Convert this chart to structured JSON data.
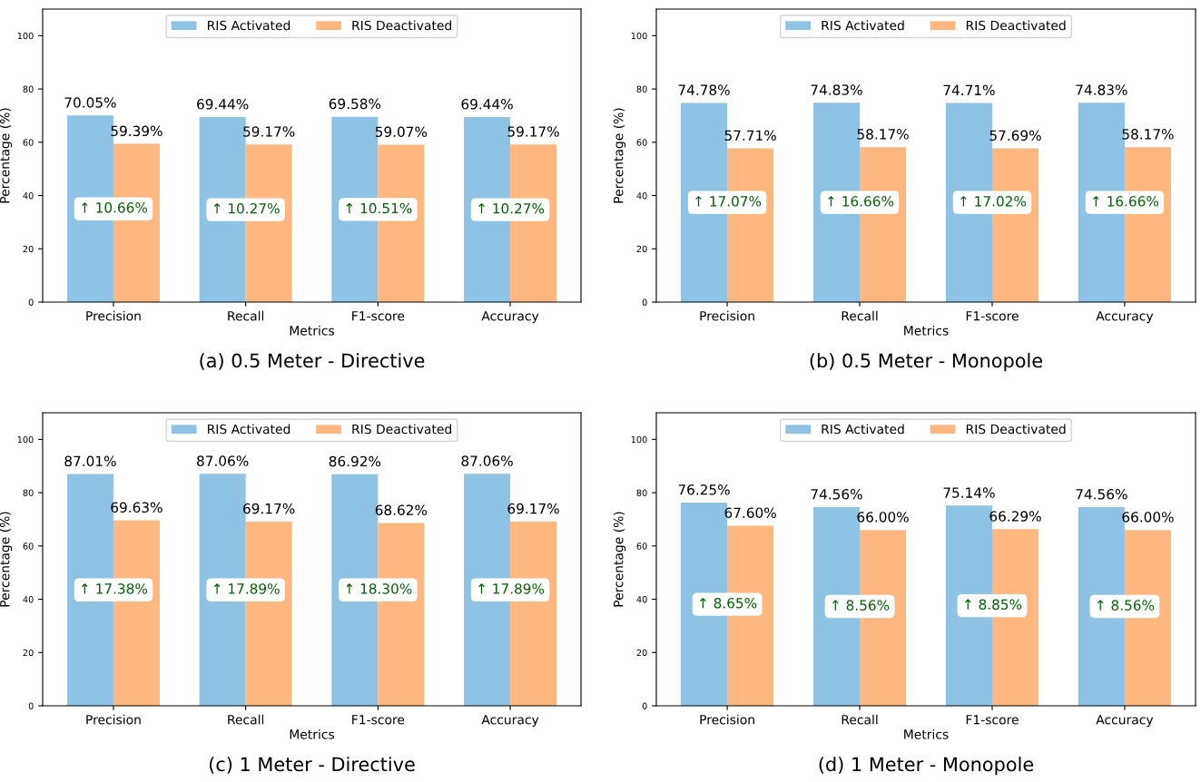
{
  "chart_data": [
    {
      "type": "bar",
      "title": "(a) 0.5 Meter - Directive",
      "xlabel": "Metrics",
      "ylabel": "Percentage (%)",
      "categories": [
        "Precision",
        "Recall",
        "F1-score",
        "Accuracy"
      ],
      "ylim": [
        0,
        110
      ],
      "yticks": [
        0,
        20,
        40,
        60,
        80,
        100
      ],
      "legend": "top",
      "series": [
        {
          "name": "RIS Activated",
          "color": "#8ec3e6",
          "values": [
            70.05,
            69.44,
            69.58,
            69.44
          ],
          "value_labels": [
            "70.05%",
            "69.44%",
            "69.58%",
            "69.44%"
          ]
        },
        {
          "name": "RIS Deactivated",
          "color": "#feb87f",
          "values": [
            59.39,
            59.17,
            59.07,
            59.17
          ],
          "value_labels": [
            "59.39%",
            "59.17%",
            "59.07%",
            "59.17%"
          ]
        }
      ],
      "annotations": [
        {
          "text": "↑ 10.66%",
          "x": "Precision",
          "y": 35
        },
        {
          "text": "↑ 10.27%",
          "x": "Recall",
          "y": 34.7
        },
        {
          "text": "↑ 10.51%",
          "x": "F1-score",
          "y": 34.8
        },
        {
          "text": "↑ 10.27%",
          "x": "Accuracy",
          "y": 34.7
        }
      ]
    },
    {
      "type": "bar",
      "title": "(b) 0.5 Meter - Monopole",
      "xlabel": "Metrics",
      "ylabel": "Percentage (%)",
      "categories": [
        "Precision",
        "Recall",
        "F1-score",
        "Accuracy"
      ],
      "ylim": [
        0,
        110
      ],
      "yticks": [
        0,
        20,
        40,
        60,
        80,
        100
      ],
      "legend": "top",
      "series": [
        {
          "name": "RIS Activated",
          "color": "#8ec3e6",
          "values": [
            74.78,
            74.83,
            74.71,
            74.83
          ],
          "value_labels": [
            "74.78%",
            "74.83%",
            "74.71%",
            "74.83%"
          ]
        },
        {
          "name": "RIS Deactivated",
          "color": "#feb87f",
          "values": [
            57.71,
            58.17,
            57.69,
            58.17
          ],
          "value_labels": [
            "57.71%",
            "58.17%",
            "57.69%",
            "58.17%"
          ]
        }
      ],
      "annotations": [
        {
          "text": "↑ 17.07%",
          "x": "Precision",
          "y": 37.4
        },
        {
          "text": "↑ 16.66%",
          "x": "Recall",
          "y": 37.4
        },
        {
          "text": "↑ 17.02%",
          "x": "F1-score",
          "y": 37.4
        },
        {
          "text": "↑ 16.66%",
          "x": "Accuracy",
          "y": 37.4
        }
      ]
    },
    {
      "type": "bar",
      "title": "(c) 1 Meter - Directive",
      "xlabel": "Metrics",
      "ylabel": "Percentage (%)",
      "categories": [
        "Precision",
        "Recall",
        "F1-score",
        "Accuracy"
      ],
      "ylim": [
        0,
        110
      ],
      "yticks": [
        0,
        20,
        40,
        60,
        80,
        100
      ],
      "legend": "top",
      "series": [
        {
          "name": "RIS Activated",
          "color": "#8ec3e6",
          "values": [
            87.01,
            87.06,
            86.92,
            87.06
          ],
          "value_labels": [
            "87.01%",
            "87.06%",
            "86.92%",
            "87.06%"
          ]
        },
        {
          "name": "RIS Deactivated",
          "color": "#feb87f",
          "values": [
            69.63,
            69.17,
            68.62,
            69.17
          ],
          "value_labels": [
            "69.63%",
            "69.17%",
            "68.62%",
            "69.17%"
          ]
        }
      ],
      "annotations": [
        {
          "text": "↑ 17.38%",
          "x": "Precision",
          "y": 43.5
        },
        {
          "text": "↑ 17.89%",
          "x": "Recall",
          "y": 43.5
        },
        {
          "text": "↑ 18.30%",
          "x": "F1-score",
          "y": 43.5
        },
        {
          "text": "↑ 17.89%",
          "x": "Accuracy",
          "y": 43.5
        }
      ]
    },
    {
      "type": "bar",
      "title": "(d) 1 Meter - Monopole",
      "xlabel": "Metrics",
      "ylabel": "Percentage (%)",
      "categories": [
        "Precision",
        "Recall",
        "F1-score",
        "Accuracy"
      ],
      "ylim": [
        0,
        110
      ],
      "yticks": [
        0,
        20,
        40,
        60,
        80,
        100
      ],
      "legend": "top",
      "series": [
        {
          "name": "RIS Activated",
          "color": "#8ec3e6",
          "values": [
            76.25,
            74.56,
            75.14,
            74.56
          ],
          "value_labels": [
            "76.25%",
            "74.56%",
            "75.14%",
            "74.56%"
          ]
        },
        {
          "name": "RIS Deactivated",
          "color": "#feb87f",
          "values": [
            67.6,
            66.0,
            66.29,
            66.0
          ],
          "value_labels": [
            "67.60%",
            "66.00%",
            "66.29%",
            "66.00%"
          ]
        }
      ],
      "annotations": [
        {
          "text": "↑ 8.65%",
          "x": "Precision",
          "y": 38.1
        },
        {
          "text": "↑ 8.56%",
          "x": "Recall",
          "y": 37.3
        },
        {
          "text": "↑ 8.85%",
          "x": "F1-score",
          "y": 37.6
        },
        {
          "text": "↑ 8.56%",
          "x": "Accuracy",
          "y": 37.3
        }
      ]
    }
  ]
}
